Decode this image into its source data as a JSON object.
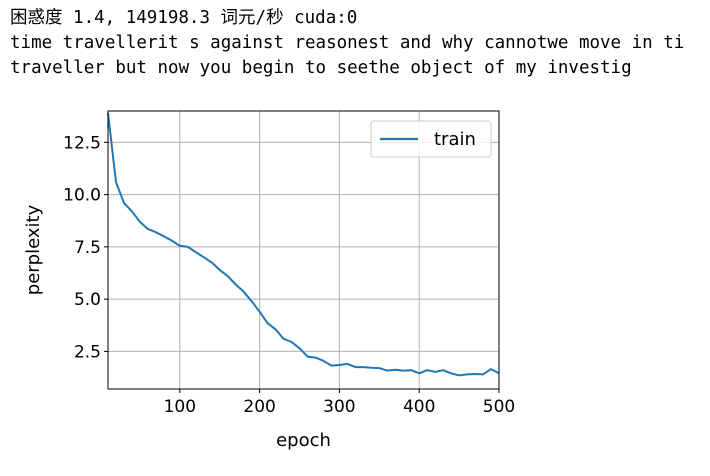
{
  "output": {
    "line1": "困惑度 1.4, 149198.3 词元/秒 cuda:0",
    "line2": "time travellerit s against reasonest and why cannotwe move in ti",
    "line3": "traveller but now you begin to seethe object of my investig"
  },
  "chart_data": {
    "type": "line",
    "title": "",
    "xlabel": "epoch",
    "ylabel": "perplexity",
    "xlim": [
      10,
      500
    ],
    "ylim": [
      0.7,
      14
    ],
    "xticks": [
      100,
      200,
      300,
      400,
      500
    ],
    "yticks": [
      2.5,
      5.0,
      7.5,
      10.0,
      12.5
    ],
    "xtick_labels": [
      "100",
      "200",
      "300",
      "400",
      "500"
    ],
    "ytick_labels": [
      "2.5",
      "5.0",
      "7.5",
      "10.0",
      "12.5"
    ],
    "grid": true,
    "legend": "upper right",
    "series": [
      {
        "name": "train",
        "color": "#1f77b4",
        "x": [
          10,
          20,
          30,
          40,
          50,
          60,
          70,
          80,
          90,
          100,
          110,
          120,
          130,
          140,
          150,
          160,
          170,
          180,
          190,
          200,
          210,
          220,
          230,
          240,
          250,
          260,
          270,
          280,
          290,
          300,
          310,
          320,
          330,
          340,
          350,
          360,
          370,
          380,
          390,
          400,
          410,
          420,
          430,
          440,
          450,
          460,
          470,
          480,
          490,
          500
        ],
        "y": [
          13.9,
          10.6,
          9.6,
          9.2,
          8.7,
          8.35,
          8.2,
          8.0,
          7.8,
          7.55,
          7.5,
          7.25,
          7.0,
          6.75,
          6.4,
          6.1,
          5.7,
          5.35,
          4.9,
          4.4,
          3.85,
          3.55,
          3.1,
          2.95,
          2.65,
          2.25,
          2.2,
          2.05,
          1.82,
          1.85,
          1.9,
          1.75,
          1.75,
          1.72,
          1.7,
          1.58,
          1.62,
          1.58,
          1.6,
          1.45,
          1.6,
          1.52,
          1.6,
          1.45,
          1.35,
          1.4,
          1.42,
          1.4,
          1.65,
          1.45
        ]
      }
    ]
  }
}
